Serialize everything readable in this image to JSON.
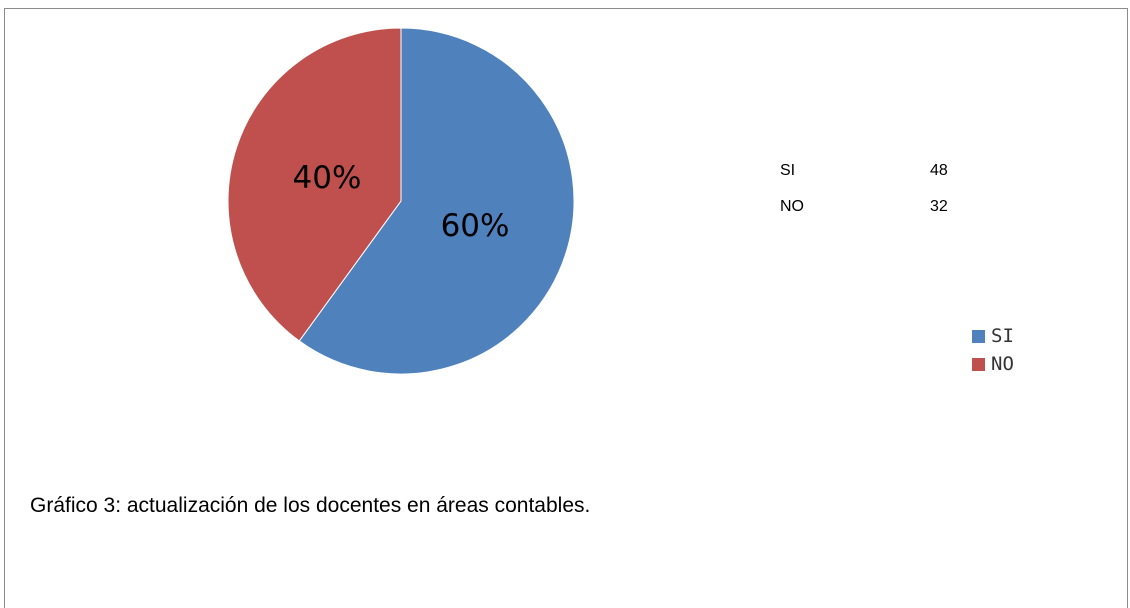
{
  "chart_data": {
    "type": "pie",
    "categories": [
      "SI",
      "NO"
    ],
    "values": [
      48,
      32
    ],
    "percent_labels": [
      "60%",
      "40%"
    ],
    "colors": [
      "#4f81bd",
      "#c0504d"
    ],
    "legend_position": "right"
  },
  "table": {
    "rows": [
      {
        "label": "SI",
        "value": "48"
      },
      {
        "label": "NO",
        "value": "32"
      }
    ]
  },
  "caption": "Gráfico 3: actualización de los docentes en áreas contables."
}
